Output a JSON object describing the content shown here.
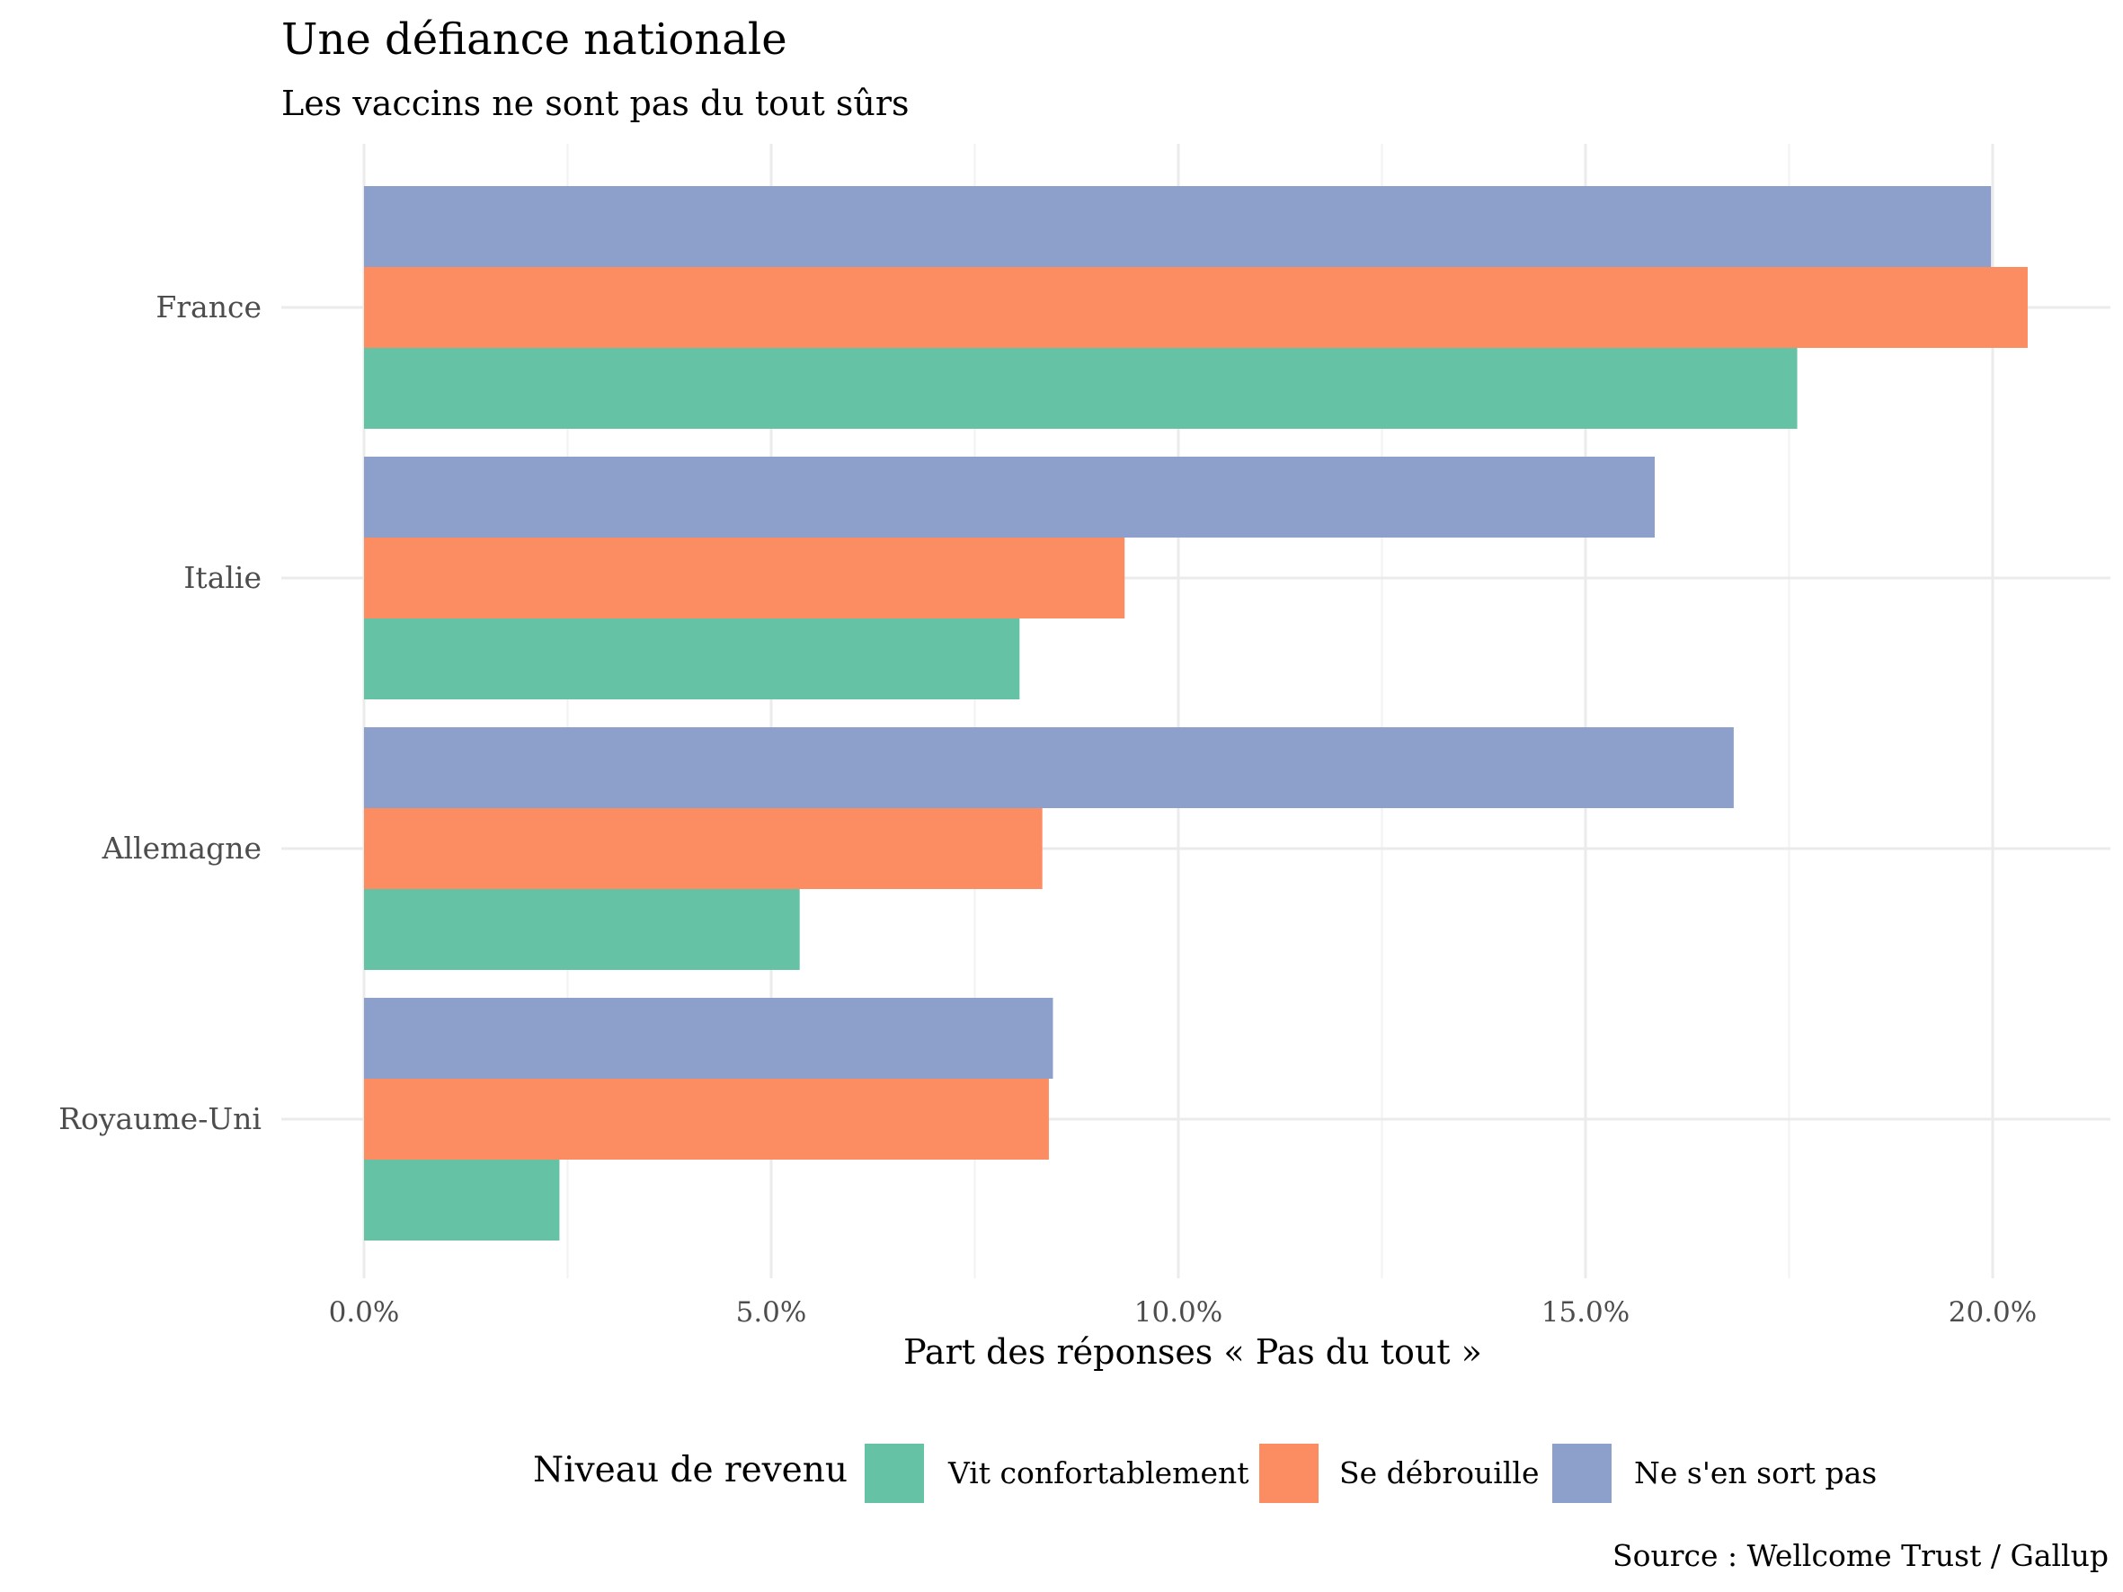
{
  "chart_data": {
    "type": "bar",
    "orientation": "horizontal",
    "title": "Une défiance nationale",
    "subtitle": "Les vaccins ne sont pas du tout sûrs",
    "xlabel": "Part des réponses « Pas du tout »",
    "ylabel": "",
    "caption": "Source : Wellcome Trust / Gallup",
    "xlim": [
      0,
      0.2125
    ],
    "x_ticks": [
      0,
      0.05,
      0.1,
      0.15,
      0.2
    ],
    "x_tick_labels": [
      "0.0%",
      "5.0%",
      "10.0%",
      "15.0%",
      "20.0%"
    ],
    "grid": true,
    "legend_position": "bottom",
    "legend_title": "Niveau de revenu",
    "categories": [
      "France",
      "Italie",
      "Allemagne",
      "Royaume-Uni"
    ],
    "series": [
      {
        "name": "Vit confortablement",
        "color": "#66c2a5",
        "values": [
          0.176,
          0.0805,
          0.0535,
          0.024
        ]
      },
      {
        "name": "Se débrouille",
        "color": "#fc8d62",
        "values": [
          0.2043,
          0.0934,
          0.0833,
          0.0841
        ]
      },
      {
        "name": "Ne s'en sort pas",
        "color": "#8da0cb",
        "values": [
          0.1998,
          0.1585,
          0.1682,
          0.0846
        ]
      }
    ]
  }
}
